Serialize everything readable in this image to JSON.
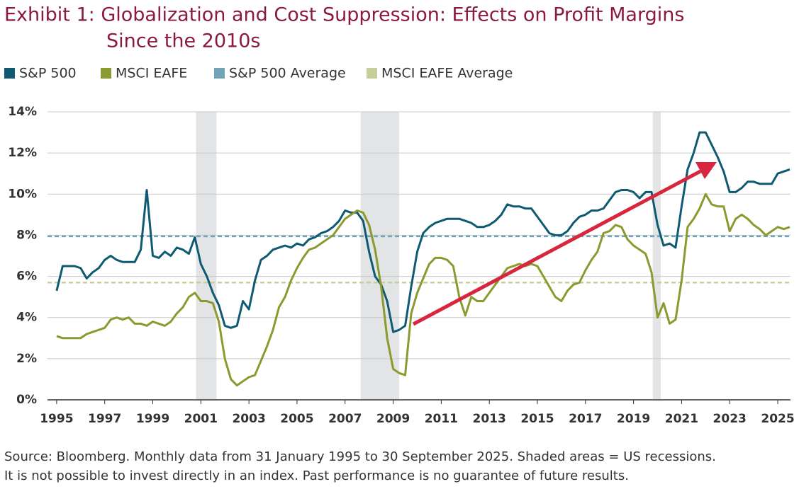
{
  "chart_data": {
    "type": "line",
    "title": [
      "Exhibit 1: Globalization and Cost Suppression: Effects on Profit Margins",
      "Since the 2010s"
    ],
    "notes": [
      "Source: Bloomberg. Monthly data from 31 January 1995 to 30 September 2025. Shaded areas = US recessions.",
      "It is not possible to invest directly in an index. Past performance is no guarantee of future results."
    ],
    "x": [
      1995,
      1995.25,
      1995.5,
      1995.75,
      1996,
      1996.25,
      1996.5,
      1996.75,
      1997,
      1997.25,
      1997.5,
      1997.75,
      1998,
      1998.25,
      1998.5,
      1998.75,
      1999,
      1999.25,
      1999.5,
      1999.75,
      2000,
      2000.25,
      2000.5,
      2000.75,
      2001,
      2001.25,
      2001.5,
      2001.75,
      2002,
      2002.25,
      2002.5,
      2002.75,
      2003,
      2003.25,
      2003.5,
      2003.75,
      2004,
      2004.25,
      2004.5,
      2004.75,
      2005,
      2005.25,
      2005.5,
      2005.75,
      2006,
      2006.25,
      2006.5,
      2006.75,
      2007,
      2007.25,
      2007.5,
      2007.75,
      2008,
      2008.25,
      2008.5,
      2008.75,
      2009,
      2009.25,
      2009.5,
      2009.75,
      2010,
      2010.25,
      2010.5,
      2010.75,
      2011,
      2011.25,
      2011.5,
      2011.75,
      2012,
      2012.25,
      2012.5,
      2012.75,
      2013,
      2013.25,
      2013.5,
      2013.75,
      2014,
      2014.25,
      2014.5,
      2014.75,
      2015,
      2015.25,
      2015.5,
      2015.75,
      2016,
      2016.25,
      2016.5,
      2016.75,
      2017,
      2017.25,
      2017.5,
      2017.75,
      2018,
      2018.25,
      2018.5,
      2018.75,
      2019,
      2019.25,
      2019.5,
      2019.75,
      2020,
      2020.25,
      2020.5,
      2020.75,
      2021,
      2021.25,
      2021.5,
      2021.75,
      2022,
      2022.25,
      2022.5,
      2022.75,
      2023,
      2023.25,
      2023.5,
      2023.75,
      2024,
      2024.25,
      2024.5,
      2024.75,
      2025,
      2025.25,
      2025.5
    ],
    "series": [
      {
        "name": "S&P 500",
        "color": "#0f5a73",
        "values": [
          5.3,
          6.5,
          6.5,
          6.5,
          6.4,
          5.9,
          6.2,
          6.4,
          6.8,
          7.0,
          6.8,
          6.7,
          6.7,
          6.7,
          7.3,
          10.2,
          7.0,
          6.9,
          7.2,
          7.0,
          7.4,
          7.3,
          7.1,
          7.9,
          6.6,
          6.0,
          5.2,
          4.6,
          3.6,
          3.5,
          3.6,
          4.8,
          4.4,
          5.8,
          6.8,
          7.0,
          7.3,
          7.4,
          7.5,
          7.4,
          7.6,
          7.5,
          7.8,
          7.9,
          8.1,
          8.2,
          8.4,
          8.7,
          9.2,
          9.1,
          9.1,
          8.7,
          7.2,
          6.0,
          5.6,
          4.8,
          3.3,
          3.4,
          3.6,
          5.5,
          7.2,
          8.1,
          8.4,
          8.6,
          8.7,
          8.8,
          8.8,
          8.8,
          8.7,
          8.6,
          8.4,
          8.4,
          8.5,
          8.7,
          9.0,
          9.5,
          9.4,
          9.4,
          9.3,
          9.3,
          8.9,
          8.5,
          8.1,
          8.0,
          8.0,
          8.2,
          8.6,
          8.9,
          9.0,
          9.2,
          9.2,
          9.3,
          9.7,
          10.1,
          10.2,
          10.2,
          10.1,
          9.8,
          10.1,
          10.1,
          8.5,
          7.5,
          7.6,
          7.4,
          9.4,
          11.2,
          12.0,
          13.0,
          13.0,
          12.4,
          11.8,
          11.1,
          10.1,
          10.1,
          10.3,
          10.6,
          10.6,
          10.5,
          10.5,
          10.5,
          11.0,
          11.1,
          11.2
        ]
      },
      {
        "name": "MSCI EAFE",
        "color": "#8a9a2f",
        "values": [
          3.1,
          3.0,
          3.0,
          3.0,
          3.0,
          3.2,
          3.3,
          3.4,
          3.5,
          3.9,
          4.0,
          3.9,
          4.0,
          3.7,
          3.7,
          3.6,
          3.8,
          3.7,
          3.6,
          3.8,
          4.2,
          4.5,
          5.0,
          5.2,
          4.8,
          4.8,
          4.7,
          3.8,
          2.0,
          1.0,
          0.7,
          0.9,
          1.1,
          1.2,
          1.9,
          2.6,
          3.4,
          4.5,
          5.0,
          5.8,
          6.4,
          6.9,
          7.3,
          7.4,
          7.6,
          7.8,
          8.0,
          8.4,
          8.8,
          9.0,
          9.2,
          9.1,
          8.5,
          7.3,
          5.5,
          3.0,
          1.5,
          1.3,
          1.2,
          4.2,
          5.2,
          5.9,
          6.6,
          6.9,
          6.9,
          6.8,
          6.5,
          5.0,
          4.1,
          5.0,
          4.8,
          4.8,
          5.2,
          5.6,
          6.0,
          6.4,
          6.5,
          6.6,
          6.5,
          6.6,
          6.5,
          6.0,
          5.5,
          5.0,
          4.8,
          5.3,
          5.6,
          5.7,
          6.3,
          6.8,
          7.2,
          8.1,
          8.2,
          8.5,
          8.4,
          7.8,
          7.5,
          7.3,
          7.1,
          6.2,
          4.0,
          4.7,
          3.7,
          3.9,
          5.8,
          8.4,
          8.8,
          9.3,
          10.0,
          9.5,
          9.4,
          9.4,
          8.2,
          8.8,
          9.0,
          8.8,
          8.5,
          8.3,
          8.0,
          8.2,
          8.4,
          8.3,
          8.4
        ]
      }
    ],
    "averages": [
      {
        "name": "S&P 500 Average",
        "color": "#6fa3b8",
        "value": 7.95
      },
      {
        "name": "MSCI EAFE Average",
        "color": "#c4cf9a",
        "value": 5.7
      }
    ],
    "recessions": [
      [
        2000.8,
        2001.65
      ],
      [
        2007.65,
        2009.25
      ],
      [
        2019.8,
        2020.13
      ]
    ],
    "xlim": [
      1994.62,
      2025.53
    ],
    "xticks": [
      1995,
      1997,
      1999,
      2001,
      2003,
      2005,
      2007,
      2009,
      2011,
      2013,
      2015,
      2017,
      2019,
      2021,
      2023,
      2025
    ],
    "ylim": [
      0,
      14
    ],
    "yticks": [
      {
        "value": 0,
        "label": "0%"
      },
      {
        "value": 2,
        "label": "2%"
      },
      {
        "value": 4,
        "label": "4%"
      },
      {
        "value": 6,
        "label": "6%"
      },
      {
        "value": 8,
        "label": "8%"
      },
      {
        "value": 10,
        "label": "10%"
      },
      {
        "value": 12,
        "label": "12%"
      },
      {
        "value": 14,
        "label": "14%"
      }
    ],
    "grid": true
  }
}
